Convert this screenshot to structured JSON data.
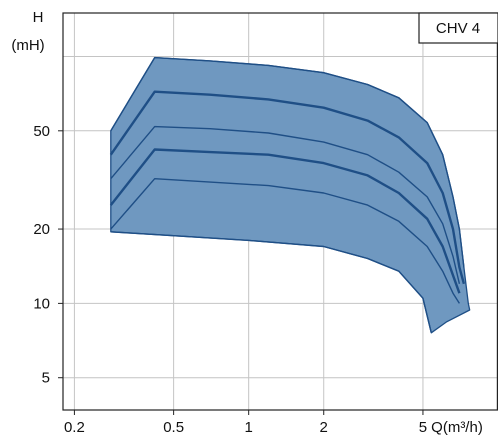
{
  "chart_data": {
    "type": "area",
    "title": "CHV 4",
    "ylabel_line1": "H",
    "ylabel_line2": "(mH)",
    "xlabel": "Q(m³/h)",
    "x_scale": "log",
    "y_scale": "log",
    "xlim": [
      0.18,
      10
    ],
    "ylim": [
      3.7,
      150
    ],
    "x_ticks": [
      0.2,
      0.5,
      1,
      2,
      5
    ],
    "x_tick_labels": [
      "0.2",
      "0.5",
      "1",
      "2",
      "5"
    ],
    "y_ticks": [
      5,
      10,
      20,
      50
    ],
    "y_tick_labels": [
      "5",
      "10",
      "20",
      "50"
    ],
    "grid": true,
    "colors": {
      "fill": "#6f98c0",
      "edge": "#1f4f86",
      "grid": "#c4c4c4",
      "frame": "#222222"
    },
    "envelope": {
      "upper": [
        [
          0.28,
          50
        ],
        [
          0.42,
          99
        ],
        [
          0.7,
          96
        ],
        [
          1.2,
          92
        ],
        [
          2.0,
          86
        ],
        [
          3.0,
          77
        ],
        [
          4.0,
          68
        ],
        [
          5.2,
          54
        ],
        [
          6.0,
          40
        ],
        [
          6.6,
          27
        ],
        [
          7.0,
          20
        ],
        [
          7.3,
          14
        ],
        [
          7.6,
          10
        ],
        [
          7.7,
          9.4
        ]
      ],
      "lower": [
        [
          6.2,
          8.4
        ],
        [
          5.4,
          7.6
        ],
        [
          5.0,
          10.5
        ],
        [
          4.0,
          13.5
        ],
        [
          3.0,
          15.2
        ],
        [
          2.0,
          17.0
        ],
        [
          1.0,
          18.0
        ],
        [
          0.5,
          18.8
        ],
        [
          0.28,
          19.5
        ]
      ]
    },
    "series": [
      {
        "values": [
          [
            0.28,
            50
          ],
          [
            0.42,
            99
          ],
          [
            0.7,
            96
          ],
          [
            1.2,
            92
          ],
          [
            2.0,
            86
          ],
          [
            3.0,
            77
          ],
          [
            4.0,
            68
          ],
          [
            5.2,
            54
          ],
          [
            6.0,
            40
          ],
          [
            6.6,
            27
          ],
          [
            7.0,
            20
          ],
          [
            7.3,
            14
          ]
        ]
      },
      {
        "values": [
          [
            0.28,
            40
          ],
          [
            0.42,
            72
          ],
          [
            0.7,
            70
          ],
          [
            1.2,
            67
          ],
          [
            2.0,
            62
          ],
          [
            3.0,
            55
          ],
          [
            4.0,
            47
          ],
          [
            5.2,
            37
          ],
          [
            6.0,
            28
          ],
          [
            6.6,
            20
          ],
          [
            7.0,
            14
          ],
          [
            7.3,
            12
          ]
        ]
      },
      {
        "values": [
          [
            0.28,
            32
          ],
          [
            0.42,
            52
          ],
          [
            0.7,
            51
          ],
          [
            1.2,
            49
          ],
          [
            2.0,
            45
          ],
          [
            3.0,
            40
          ],
          [
            4.0,
            34
          ],
          [
            5.2,
            27
          ],
          [
            6.0,
            21
          ],
          [
            6.6,
            15.5
          ],
          [
            7.0,
            12
          ]
        ]
      },
      {
        "values": [
          [
            0.28,
            25
          ],
          [
            0.42,
            42
          ],
          [
            0.7,
            41
          ],
          [
            1.2,
            40
          ],
          [
            2.0,
            37
          ],
          [
            3.0,
            33
          ],
          [
            4.0,
            28
          ],
          [
            5.2,
            22
          ],
          [
            6.0,
            17
          ],
          [
            6.6,
            13
          ],
          [
            7.0,
            11
          ]
        ]
      },
      {
        "values": [
          [
            0.28,
            20
          ],
          [
            0.42,
            32
          ],
          [
            0.7,
            31
          ],
          [
            1.2,
            30
          ],
          [
            2.0,
            28
          ],
          [
            3.0,
            25
          ],
          [
            4.0,
            21.5
          ],
          [
            5.2,
            17
          ],
          [
            6.0,
            13.5
          ],
          [
            6.6,
            11
          ],
          [
            7.0,
            10
          ]
        ]
      },
      {
        "values": [
          [
            0.28,
            19.5
          ],
          [
            0.5,
            18.8
          ],
          [
            1.0,
            18.0
          ],
          [
            2.0,
            17.0
          ],
          [
            3.0,
            15.2
          ],
          [
            4.0,
            13.5
          ],
          [
            5.0,
            10.5
          ],
          [
            5.4,
            7.6
          ]
        ]
      }
    ]
  }
}
